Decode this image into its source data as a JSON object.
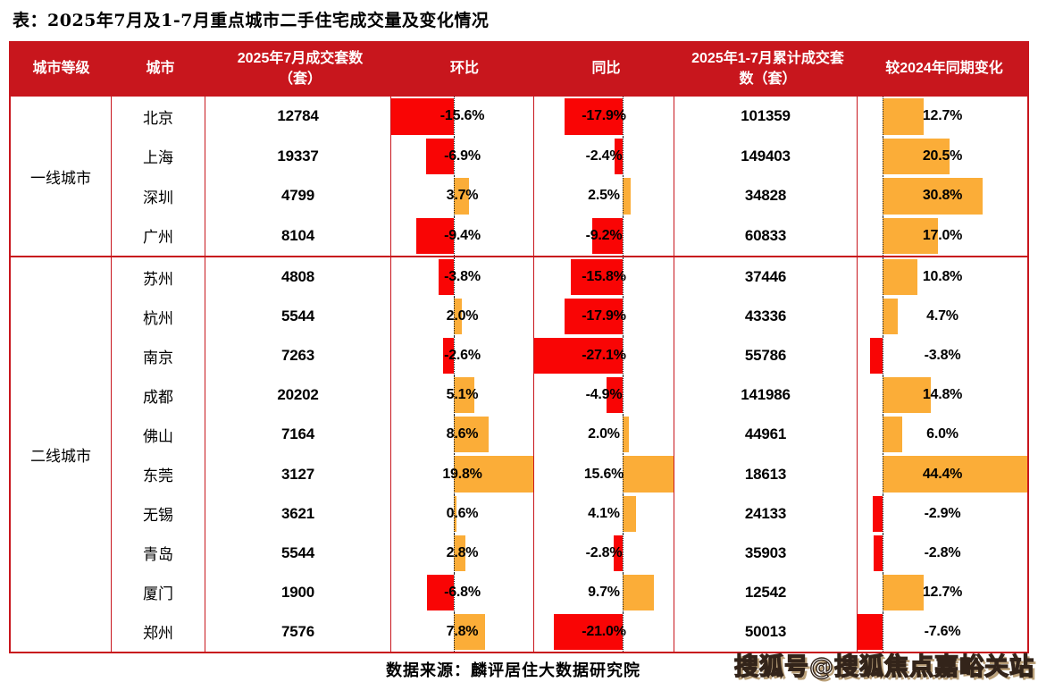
{
  "page": {
    "title": "表：2025年7月及1-7月重点城市二手住宅成交量及变化情况",
    "source_note": "数据来源：麟评居住大数据研究院",
    "watermark": "搜狐号@搜狐焦点嘉峪关站"
  },
  "colors": {
    "header_bg": "#c8161d",
    "table_border": "#c8161d",
    "bar_negative": "#f90505",
    "bar_positive": "#fbad38",
    "header_text": "#ffffff",
    "body_text": "#000000"
  },
  "chart_data": {
    "type": "table",
    "title": "表：2025年7月及1-7月重点城市二手住宅成交量及变化情况",
    "columns": [
      "城市等级",
      "城市",
      "2025年7月成交套数（套）",
      "环比",
      "同比",
      "2025年1-7月累计成交套数（套）",
      "较2024年同期变化"
    ],
    "bar_axes": {
      "mom": {
        "min": -15.6,
        "max": 19.8
      },
      "yoy": {
        "min": -27.1,
        "max": 15.6
      },
      "cum_change": {
        "min": -7.6,
        "max": 44.4
      }
    },
    "legend_note": "red bars = negative values, orange bars = positive values, dotted line = zero axis",
    "groups": [
      {
        "tier": "一线城市",
        "rows": [
          {
            "city": "北京",
            "july_sales": "12784",
            "mom": -15.6,
            "yoy": -17.9,
            "cum_sales": "101359",
            "cum_change": 12.7
          },
          {
            "city": "上海",
            "july_sales": "19337",
            "mom": -6.9,
            "yoy": -2.4,
            "cum_sales": "149403",
            "cum_change": 20.5
          },
          {
            "city": "深圳",
            "july_sales": "4799",
            "mom": 3.7,
            "yoy": 2.5,
            "cum_sales": "34828",
            "cum_change": 30.8
          },
          {
            "city": "广州",
            "july_sales": "8104",
            "mom": -9.4,
            "yoy": -9.2,
            "cum_sales": "60833",
            "cum_change": 17.0
          }
        ]
      },
      {
        "tier": "二线城市",
        "rows": [
          {
            "city": "苏州",
            "july_sales": "4808",
            "mom": -3.8,
            "yoy": -15.8,
            "cum_sales": "37446",
            "cum_change": 10.8
          },
          {
            "city": "杭州",
            "july_sales": "5544",
            "mom": 2.0,
            "yoy": -17.9,
            "cum_sales": "43336",
            "cum_change": 4.7
          },
          {
            "city": "南京",
            "july_sales": "7263",
            "mom": -2.6,
            "yoy": -27.1,
            "cum_sales": "55786",
            "cum_change": -3.8
          },
          {
            "city": "成都",
            "july_sales": "20202",
            "mom": 5.1,
            "yoy": -4.9,
            "cum_sales": "141986",
            "cum_change": 14.8
          },
          {
            "city": "佛山",
            "july_sales": "7164",
            "mom": 8.6,
            "yoy": 2.0,
            "cum_sales": "44961",
            "cum_change": 6.0
          },
          {
            "city": "东莞",
            "july_sales": "3127",
            "mom": 19.8,
            "yoy": 15.6,
            "cum_sales": "18613",
            "cum_change": 44.4
          },
          {
            "city": "无锡",
            "july_sales": "3621",
            "mom": 0.6,
            "yoy": 4.1,
            "cum_sales": "24133",
            "cum_change": -2.9
          },
          {
            "city": "青岛",
            "july_sales": "5544",
            "mom": 2.8,
            "yoy": -2.8,
            "cum_sales": "35903",
            "cum_change": -2.8
          },
          {
            "city": "厦门",
            "july_sales": "1900",
            "mom": -6.8,
            "yoy": 9.7,
            "cum_sales": "12542",
            "cum_change": 12.7
          },
          {
            "city": "郑州",
            "july_sales": "7576",
            "mom": 7.8,
            "yoy": -21.0,
            "cum_sales": "50013",
            "cum_change": -7.6
          }
        ]
      }
    ]
  }
}
